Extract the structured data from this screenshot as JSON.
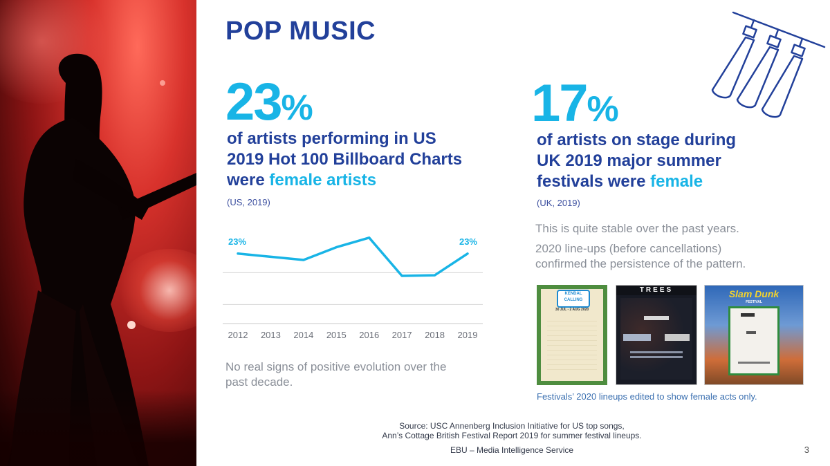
{
  "title": "POP MUSIC",
  "left": {
    "stat_number": "23",
    "stat_suffix": "%",
    "desc_line1": "of artists performing in US",
    "desc_line2": "2019 Hot 100 Billboard Charts",
    "desc_line3_pre": "were ",
    "desc_line3_hl": "female artists",
    "source_note": "(US, 2019)",
    "comment_line1": "No real signs of positive evolution over the",
    "comment_line2": "past decade."
  },
  "right": {
    "stat_number": "17",
    "stat_suffix": "%",
    "desc_line1": "of artists on stage during",
    "desc_line2": "UK 2019 major summer",
    "desc_line3_pre": "festivals were ",
    "desc_line3_hl": "female",
    "source_note": "(UK, 2019)",
    "note1": "This is quite stable over the past years.",
    "note2_line1": "2020 line-ups (before cancellations)",
    "note2_line2": "confirmed the persistence of the pattern.",
    "caption": "Festivals’ 2020 lineups edited to show female acts only.",
    "posters": [
      {
        "name": "poster-kendal-calling",
        "banner": "KENDAL CALLING",
        "dates": "30 JUL - 2 AUG 2020",
        "bg": "#f3ead0",
        "frame": "#3f8a3a"
      },
      {
        "name": "poster-trees",
        "banner": "TREES",
        "dates": "",
        "bg": "#1c1f2a",
        "frame": "#222"
      },
      {
        "name": "poster-slam-dunk",
        "banner": "Slam Dunk",
        "dates": "FESTIVAL",
        "bg": "#3c6cb3",
        "frame": "#2f8c3e"
      }
    ]
  },
  "chart_data": {
    "type": "line",
    "categories": [
      "2012",
      "2013",
      "2014",
      "2015",
      "2016",
      "2017",
      "2018",
      "2019"
    ],
    "values": [
      23,
      22.5,
      22,
      24,
      25.5,
      19.5,
      19.6,
      23
    ],
    "data_labels": {
      "first": "23%",
      "last": "23%"
    },
    "line_color": "#18b4e6",
    "ylim": [
      12,
      27
    ],
    "gridlines": [
      20,
      15
    ]
  },
  "footer": {
    "source_line1": "Source: USC Annenberg Inclusion Initiative for US top songs,",
    "source_line2": "Ann’s Cottage British Festival Report 2019 for summer festival lineups.",
    "org": "EBU – Media Intelligence Service",
    "page": "3"
  },
  "colors": {
    "navy": "#22409a",
    "cyan": "#18b4e6",
    "grey": "#8a8f98"
  },
  "icons": {
    "lights": "stage-spotlights-icon"
  }
}
